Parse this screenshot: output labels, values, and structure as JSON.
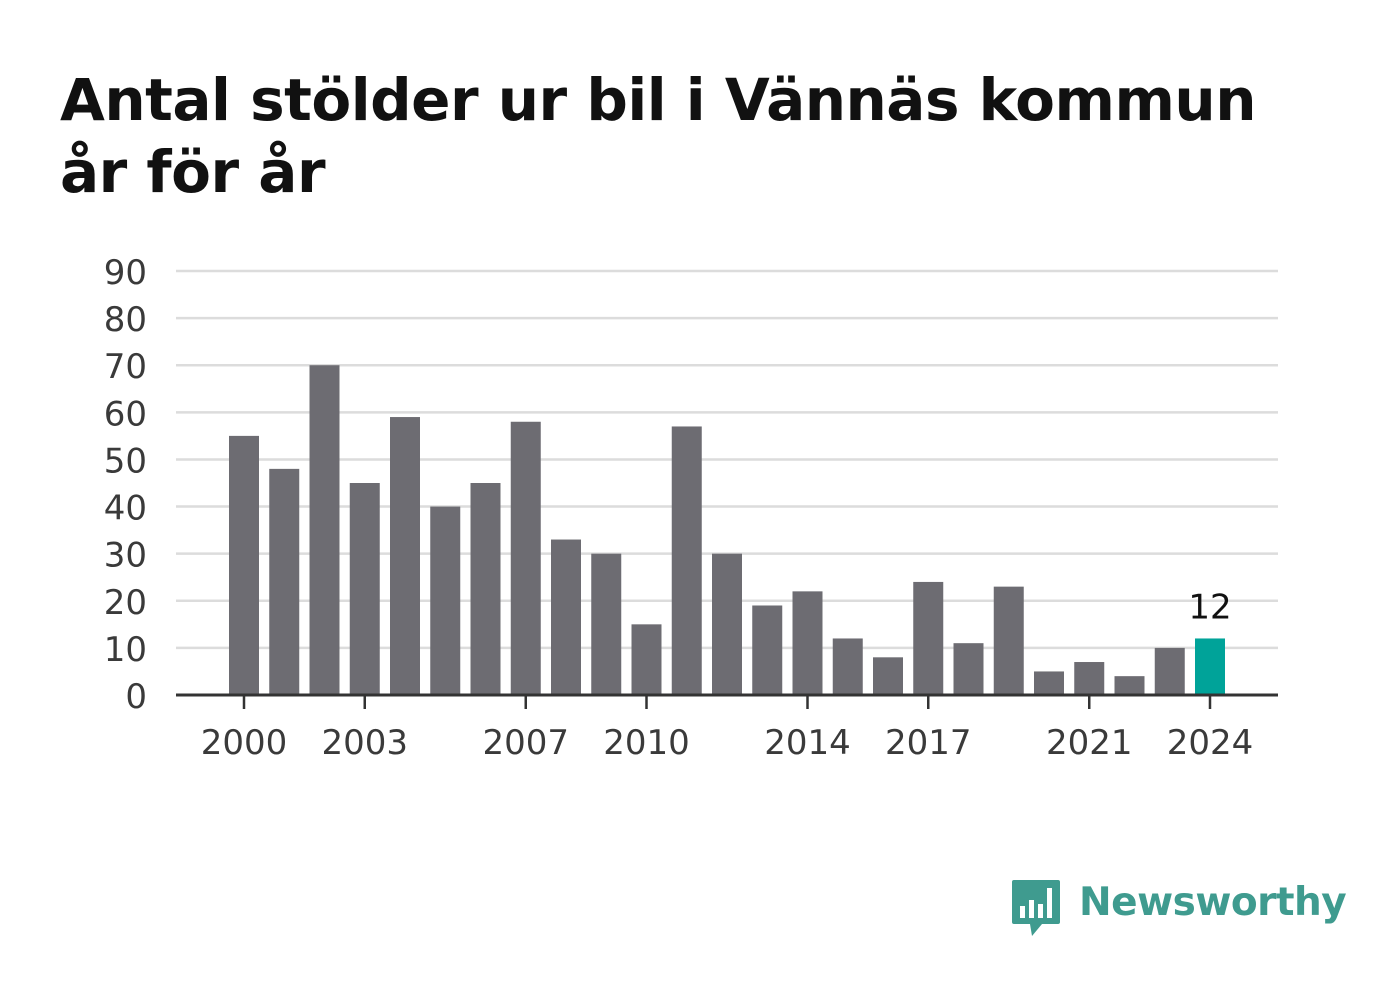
{
  "title": "Antal stölder ur bil i Vännäs kommun år för år",
  "brand": {
    "name": "Newsworthy",
    "color": "#3f9b8f"
  },
  "chart_data": {
    "type": "bar",
    "title": "Antal stölder ur bil i Vännäs kommun år för år",
    "xlabel": "",
    "ylabel": "",
    "categories": [
      2000,
      2001,
      2002,
      2003,
      2004,
      2005,
      2006,
      2007,
      2008,
      2009,
      2010,
      2011,
      2012,
      2013,
      2014,
      2015,
      2016,
      2017,
      2018,
      2019,
      2020,
      2021,
      2022,
      2023,
      2024
    ],
    "values": [
      55,
      48,
      70,
      45,
      59,
      40,
      45,
      58,
      33,
      30,
      15,
      57,
      30,
      19,
      22,
      12,
      8,
      24,
      11,
      23,
      5,
      7,
      4,
      10,
      12
    ],
    "x_tick_labels": [
      "2000",
      "2003",
      "2007",
      "2010",
      "2014",
      "2017",
      "2021",
      "2024"
    ],
    "y_ticks": [
      0,
      10,
      20,
      30,
      40,
      50,
      60,
      70,
      80,
      90
    ],
    "ylim": [
      0,
      90
    ],
    "grid": true,
    "bar_color": "#6d6c72",
    "highlight_color": "#00a399",
    "highlight_index": 24,
    "highlight_label": "12"
  }
}
